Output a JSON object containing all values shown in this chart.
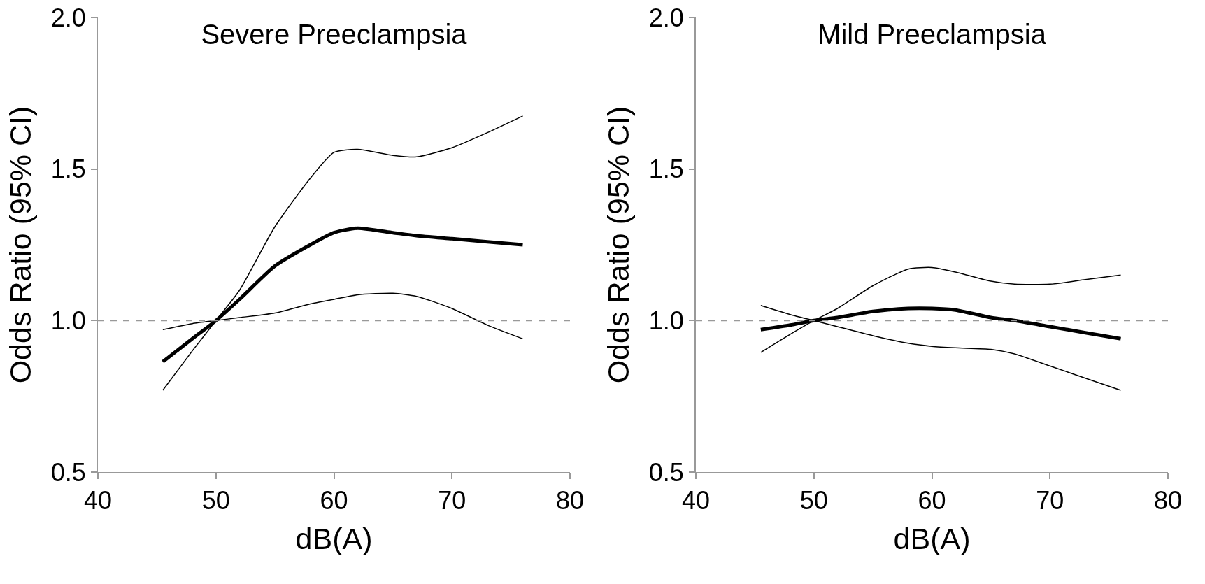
{
  "chart_data": [
    {
      "type": "line",
      "title": "Severe Preeclampsia",
      "xlabel": "dB(A)",
      "ylabel": "Odds Ratio (95% CI)",
      "x": [
        45.5,
        48,
        50,
        52,
        55,
        58,
        60,
        62,
        65,
        67,
        70,
        73,
        76
      ],
      "series": [
        {
          "color": "#000000",
          "values": [
            0.864,
            0.94,
            1.0,
            1.07,
            1.18,
            1.25,
            1.29,
            1.305,
            1.29,
            1.28,
            1.27,
            1.26,
            1.25
          ]
        },
        {
          "color": "#000000",
          "values": [
            0.97,
            0.99,
            1.0,
            1.01,
            1.025,
            1.055,
            1.07,
            1.085,
            1.09,
            1.08,
            1.04,
            0.985,
            0.94
          ]
        },
        {
          "color": "#000000",
          "values": [
            0.77,
            0.9,
            1.0,
            1.1,
            1.31,
            1.47,
            1.555,
            1.565,
            1.545,
            1.54,
            1.57,
            1.62,
            1.675
          ]
        }
      ],
      "xlim": [
        40,
        80
      ],
      "xticks": [
        40,
        50,
        60,
        70,
        80
      ],
      "ylim": [
        0.5,
        2.0
      ],
      "yticks": [
        {
          "value": 0.5,
          "label": "0.5"
        },
        {
          "value": 1.0,
          "label": "1.0"
        },
        {
          "value": 1.5,
          "label": "1.5"
        },
        {
          "value": 2.0,
          "label": "2.0"
        }
      ],
      "ref_lines": [
        {
          "axis": "y",
          "value": 1.0,
          "color": "#999999",
          "line_style": "dashed"
        }
      ],
      "grid": false,
      "marker": "none",
      "line_style": "solid"
    },
    {
      "type": "line",
      "title": "Mild Preeclampsia",
      "xlabel": "dB(A)",
      "ylabel": "Odds Ratio (95% CI)",
      "x": [
        45.5,
        48,
        50,
        52,
        55,
        58,
        60,
        62,
        65,
        67,
        70,
        73,
        76
      ],
      "series": [
        {
          "color": "#000000",
          "values": [
            0.97,
            0.985,
            1.0,
            1.01,
            1.03,
            1.04,
            1.04,
            1.035,
            1.01,
            1.0,
            0.98,
            0.96,
            0.94
          ]
        },
        {
          "color": "#000000",
          "values": [
            1.05,
            1.02,
            1.0,
            0.98,
            0.95,
            0.925,
            0.915,
            0.91,
            0.905,
            0.89,
            0.85,
            0.81,
            0.77
          ]
        },
        {
          "color": "#000000",
          "values": [
            0.895,
            0.955,
            1.0,
            1.04,
            1.115,
            1.17,
            1.175,
            1.16,
            1.13,
            1.12,
            1.12,
            1.135,
            1.15
          ]
        }
      ],
      "xlim": [
        40,
        80
      ],
      "xticks": [
        40,
        50,
        60,
        70,
        80
      ],
      "ylim": [
        0.5,
        2.0
      ],
      "yticks": [
        {
          "value": 0.5,
          "label": "0.5"
        },
        {
          "value": 1.0,
          "label": "1.0"
        },
        {
          "value": 1.5,
          "label": "1.5"
        },
        {
          "value": 2.0,
          "label": "2.0"
        }
      ],
      "ref_lines": [
        {
          "axis": "y",
          "value": 1.0,
          "color": "#999999",
          "line_style": "dashed"
        }
      ],
      "grid": false,
      "marker": "none",
      "line_style": "solid"
    }
  ]
}
